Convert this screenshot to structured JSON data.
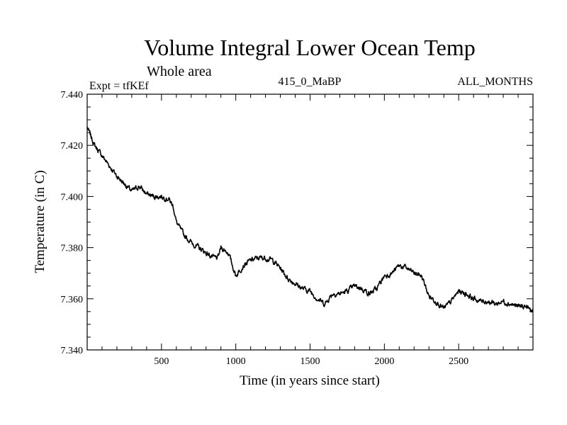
{
  "chart_data": {
    "type": "line",
    "title": "Volume Integral Lower Ocean Temp",
    "subtitle": "Whole area",
    "left_label": "Expt = tfKEf",
    "center_label": "415_0_MaBP",
    "right_label": "ALL_MONTHS",
    "xlabel": "Time (in years since start)",
    "ylabel": "Temperature (in C)",
    "xlim": [
      0,
      3000
    ],
    "ylim": [
      7.34,
      7.44
    ],
    "x_ticks": [
      500,
      1000,
      1500,
      2000,
      2500
    ],
    "x_tick_labels": [
      "500",
      "1000",
      "1500",
      "2000",
      "2500"
    ],
    "y_ticks": [
      7.34,
      7.36,
      7.38,
      7.4,
      7.42,
      7.44
    ],
    "y_tick_labels": [
      "7.340",
      "7.360",
      "7.380",
      "7.400",
      "7.420",
      "7.440"
    ],
    "grid": false,
    "series": [
      {
        "color": "#000000",
        "x": [
          0,
          50,
          100,
          150,
          200,
          250,
          300,
          350,
          400,
          450,
          500,
          550,
          580,
          600,
          650,
          700,
          750,
          800,
          850,
          880,
          900,
          950,
          1000,
          1050,
          1100,
          1150,
          1200,
          1250,
          1300,
          1350,
          1400,
          1450,
          1500,
          1550,
          1600,
          1650,
          1700,
          1750,
          1800,
          1850,
          1900,
          1950,
          2000,
          2050,
          2100,
          2150,
          2200,
          2250,
          2300,
          2350,
          2400,
          2450,
          2500,
          2550,
          2600,
          2650,
          2700,
          2750,
          2800,
          2850,
          2900,
          2950,
          3000
        ],
        "y": [
          7.427,
          7.42,
          7.416,
          7.412,
          7.408,
          7.405,
          7.402,
          7.404,
          7.401,
          7.4,
          7.4,
          7.399,
          7.396,
          7.39,
          7.385,
          7.382,
          7.38,
          7.378,
          7.376,
          7.376,
          7.38,
          7.378,
          7.369,
          7.373,
          7.375,
          7.376,
          7.376,
          7.375,
          7.372,
          7.368,
          7.366,
          7.364,
          7.363,
          7.36,
          7.358,
          7.362,
          7.362,
          7.363,
          7.365,
          7.364,
          7.362,
          7.364,
          7.369,
          7.37,
          7.373,
          7.372,
          7.37,
          7.369,
          7.361,
          7.359,
          7.356,
          7.359,
          7.363,
          7.362,
          7.36,
          7.359,
          7.359,
          7.358,
          7.359,
          7.358,
          7.357,
          7.357,
          7.355
        ]
      }
    ]
  }
}
